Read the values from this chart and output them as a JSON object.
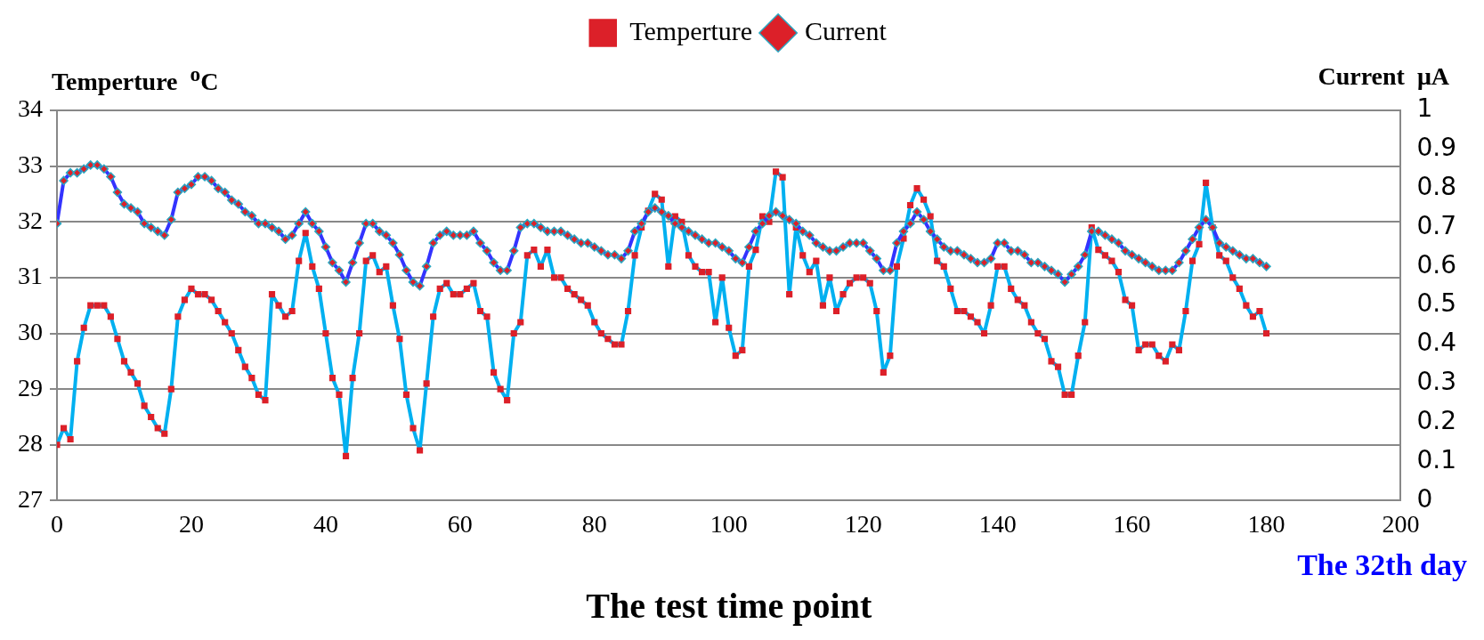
{
  "chart_data": {
    "type": "line",
    "xlabel": "The test time point",
    "ylabel": "Temperture  $^{o}$C",
    "y2label": "Current  μA",
    "annotations": [
      "The 32th day"
    ],
    "x": [
      0,
      1,
      2,
      3,
      4,
      5,
      6,
      7,
      8,
      9,
      10,
      11,
      12,
      13,
      14,
      15,
      16,
      17,
      18,
      19,
      20,
      21,
      22,
      23,
      24,
      25,
      26,
      27,
      28,
      29,
      30,
      31,
      32,
      33,
      34,
      35,
      36,
      37,
      38,
      39,
      40,
      41,
      42,
      43,
      44,
      45,
      46,
      47,
      48,
      49,
      50,
      51,
      52,
      53,
      54,
      55,
      56,
      57,
      58,
      59,
      60,
      61,
      62,
      63,
      64,
      65,
      66,
      67,
      68,
      69,
      70,
      71,
      72,
      73,
      74,
      75,
      76,
      77,
      78,
      79,
      80,
      81,
      82,
      83,
      84,
      85,
      86,
      87,
      88,
      89,
      90,
      91,
      92,
      93,
      94,
      95,
      96,
      97,
      98,
      99,
      100,
      101,
      102,
      103,
      104,
      105,
      106,
      107,
      108,
      109,
      110,
      111,
      112,
      113,
      114,
      115,
      116,
      117,
      118,
      119,
      120,
      121,
      122,
      123,
      124,
      125,
      126,
      127,
      128,
      129,
      130,
      131,
      132,
      133,
      134,
      135,
      136,
      137,
      138,
      139,
      140,
      141,
      142,
      143,
      144,
      145,
      146,
      147,
      148,
      149,
      150,
      151,
      152,
      153,
      154,
      155,
      156,
      157,
      158,
      159,
      160,
      161,
      162,
      163,
      164,
      165,
      166,
      167,
      168,
      169,
      170,
      171,
      172,
      173,
      174,
      175,
      176,
      177,
      178,
      179,
      180
    ],
    "series": [
      {
        "name": "Temperture",
        "color": "#00b0f0",
        "marker": "square",
        "values": [
          28.0,
          28.3,
          28.1,
          29.5,
          30.1,
          30.5,
          30.5,
          30.5,
          30.3,
          29.9,
          29.5,
          29.3,
          29.1,
          28.7,
          28.5,
          28.3,
          28.2,
          29.0,
          30.3,
          30.6,
          30.8,
          30.7,
          30.7,
          30.6,
          30.4,
          30.2,
          30.0,
          29.7,
          29.4,
          29.2,
          28.9,
          28.8,
          30.7,
          30.5,
          30.3,
          30.4,
          31.3,
          31.8,
          31.2,
          30.8,
          30.0,
          29.2,
          28.9,
          27.8,
          29.2,
          30.0,
          31.3,
          31.4,
          31.1,
          31.2,
          30.5,
          29.9,
          28.9,
          28.3,
          27.9,
          29.1,
          30.3,
          30.8,
          30.9,
          30.7,
          30.7,
          30.8,
          30.9,
          30.4,
          30.3,
          29.3,
          29.0,
          28.8,
          30.0,
          30.2,
          31.4,
          31.5,
          31.2,
          31.5,
          31.0,
          31.0,
          30.8,
          30.7,
          30.6,
          30.5,
          30.2,
          30.0,
          29.9,
          29.8,
          29.8,
          30.4,
          31.4,
          31.9,
          32.2,
          32.5,
          32.4,
          31.2,
          32.1,
          32.0,
          31.4,
          31.2,
          31.1,
          31.1,
          30.2,
          31.0,
          30.1,
          29.6,
          29.7,
          31.2,
          31.5,
          32.1,
          32.0,
          32.9,
          32.8,
          30.7,
          31.9,
          31.4,
          31.1,
          31.3,
          30.5,
          31.0,
          30.4,
          30.7,
          30.9,
          31.0,
          31.0,
          30.9,
          30.4,
          29.3,
          29.6,
          31.2,
          31.7,
          32.3,
          32.6,
          32.4,
          32.1,
          31.3,
          31.2,
          30.8,
          30.4,
          30.4,
          30.3,
          30.2,
          30.0,
          30.5,
          31.2,
          31.2,
          30.8,
          30.6,
          30.5,
          30.2,
          30.0,
          29.9,
          29.5,
          29.4,
          28.9,
          28.9,
          29.6,
          30.2,
          31.9,
          31.5,
          31.4,
          31.3,
          31.1,
          30.6,
          30.5,
          29.7,
          29.8,
          29.8,
          29.6,
          29.5,
          29.8,
          29.7,
          30.4,
          31.3,
          31.6,
          32.7,
          31.9,
          31.4,
          31.3,
          31.0,
          30.8,
          30.5,
          30.3,
          30.4,
          30.0
        ]
      },
      {
        "name": "Current",
        "color": "#3333ff",
        "marker": "diamond",
        "axis": "y2",
        "values": [
          0.71,
          0.82,
          0.84,
          0.84,
          0.85,
          0.86,
          0.86,
          0.85,
          0.83,
          0.79,
          0.76,
          0.75,
          0.74,
          0.71,
          0.7,
          0.69,
          0.68,
          0.72,
          0.79,
          0.8,
          0.81,
          0.83,
          0.83,
          0.82,
          0.8,
          0.79,
          0.77,
          0.76,
          0.74,
          0.73,
          0.71,
          0.71,
          0.7,
          0.69,
          0.67,
          0.68,
          0.71,
          0.74,
          0.71,
          0.69,
          0.65,
          0.61,
          0.59,
          0.56,
          0.61,
          0.66,
          0.71,
          0.71,
          0.69,
          0.68,
          0.66,
          0.63,
          0.59,
          0.56,
          0.55,
          0.6,
          0.66,
          0.68,
          0.69,
          0.68,
          0.68,
          0.68,
          0.69,
          0.66,
          0.64,
          0.61,
          0.59,
          0.59,
          0.64,
          0.7,
          0.71,
          0.71,
          0.7,
          0.69,
          0.69,
          0.69,
          0.68,
          0.67,
          0.66,
          0.66,
          0.65,
          0.64,
          0.63,
          0.63,
          0.62,
          0.64,
          0.69,
          0.71,
          0.74,
          0.75,
          0.74,
          0.73,
          0.71,
          0.7,
          0.69,
          0.68,
          0.67,
          0.66,
          0.66,
          0.65,
          0.64,
          0.62,
          0.61,
          0.65,
          0.69,
          0.71,
          0.73,
          0.74,
          0.73,
          0.72,
          0.71,
          0.69,
          0.68,
          0.66,
          0.65,
          0.64,
          0.64,
          0.65,
          0.66,
          0.66,
          0.66,
          0.64,
          0.62,
          0.59,
          0.59,
          0.66,
          0.69,
          0.71,
          0.74,
          0.72,
          0.69,
          0.67,
          0.65,
          0.64,
          0.64,
          0.63,
          0.62,
          0.61,
          0.61,
          0.62,
          0.66,
          0.66,
          0.64,
          0.64,
          0.63,
          0.61,
          0.61,
          0.6,
          0.59,
          0.58,
          0.56,
          0.58,
          0.6,
          0.63,
          0.69,
          0.69,
          0.68,
          0.67,
          0.66,
          0.64,
          0.63,
          0.62,
          0.61,
          0.6,
          0.59,
          0.59,
          0.59,
          0.61,
          0.64,
          0.67,
          0.7,
          0.72,
          0.7,
          0.66,
          0.65,
          0.64,
          0.63,
          0.62,
          0.62,
          0.61,
          0.6
        ]
      }
    ],
    "xlim": [
      0,
      200
    ],
    "xticks": [
      0,
      20,
      40,
      60,
      80,
      100,
      120,
      140,
      160,
      180,
      200
    ],
    "ylim": [
      27,
      34
    ],
    "yticks": [
      27,
      28,
      29,
      30,
      31,
      32,
      33,
      34
    ],
    "y2lim": [
      0,
      1
    ],
    "y2ticks": [
      0,
      0.1,
      0.2,
      0.3,
      0.4,
      0.5,
      0.6,
      0.7,
      0.8,
      0.9,
      1
    ],
    "grid": "y",
    "legend": "top",
    "line_style": "solid"
  }
}
